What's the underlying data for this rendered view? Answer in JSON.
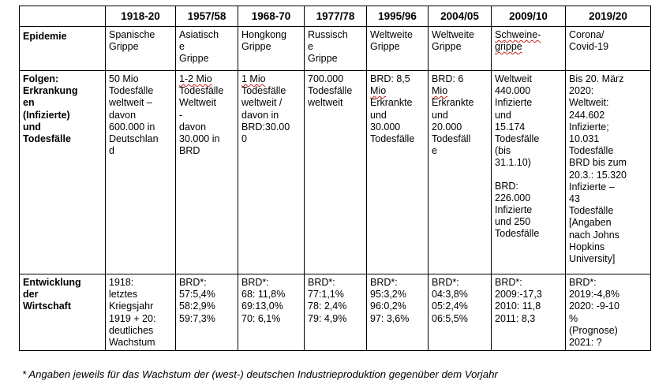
{
  "header": {
    "blank": "",
    "years": [
      "1918-20",
      "1957/58",
      "1968-70",
      "1977/78",
      "1995/96",
      "2004/05",
      "2009/10",
      "2019/20"
    ]
  },
  "rows": {
    "epidemie": {
      "label": "Epidemie",
      "cells": [
        [
          "Spanische",
          "Grippe"
        ],
        [
          "Asiatisch",
          "e",
          "Grippe"
        ],
        [
          "Hongkong",
          "Grippe"
        ],
        [
          "Russisch",
          "e",
          "Grippe"
        ],
        [
          "Weltweite",
          "Grippe"
        ],
        [
          "Weltweite",
          "Grippe"
        ],
        [
          "Schweine-",
          "grippe"
        ],
        [
          "Corona/",
          "Covid-19"
        ]
      ]
    },
    "folgen": {
      "label": [
        "Folgen:",
        "Erkrankung",
        "en",
        "(Infizierte)",
        "und",
        "Todesfälle"
      ],
      "cells": [
        [
          "50 Mio",
          "Todesfälle",
          "weltweit –",
          "davon",
          "600.000 in",
          "Deutschlan",
          "d"
        ],
        [
          "1-2 Mio",
          "Todesfälle",
          "Weltweit",
          "-",
          "davon",
          "30.000 in",
          "BRD"
        ],
        [
          "1 Mio",
          "Todesfälle",
          "weltweit /",
          "davon in",
          "BRD:30.00",
          "0"
        ],
        [
          "700.000",
          "Todesfälle",
          "weltweit"
        ],
        [
          "BRD: 8,5",
          "Mio",
          "Erkrankte",
          "und",
          "30.000",
          "Todesfälle"
        ],
        [
          "BRD: 6",
          "Mio",
          "Erkrankte",
          "und",
          "20.000",
          "Todesfäll",
          "e"
        ],
        [
          "Weltweit",
          "440.000",
          "Infizierte",
          "und",
          "15.174",
          "Todesfälle",
          "(bis",
          "31.1.10)",
          "",
          "BRD:",
          "226.000",
          "Infizierte",
          "und 250",
          "Todesfälle"
        ],
        [
          "Bis 20. März",
          "2020:",
          "Weltweit:",
          "244.602",
          "Infizierte;",
          "10.031",
          "Todesfälle",
          "BRD bis zum",
          "20.3.: 15.320",
          "Infizierte –",
          "43",
          "Todesfälle",
          "[Angaben",
          "nach Johns",
          "Hopkins",
          "University]"
        ]
      ]
    },
    "entwicklung": {
      "label": [
        "Entwicklung",
        "der",
        "Wirtschaft"
      ],
      "cells": [
        [
          "1918:",
          "letztes",
          "Kriegsjahr",
          "1919 + 20:",
          "deutliches",
          "Wachstum"
        ],
        [
          "BRD*:",
          "57:5,4%",
          "58:2,9%",
          "59:7,3%"
        ],
        [
          "BRD*:",
          "68: 11,8%",
          "69:13,0%",
          "70: 6,1%"
        ],
        [
          "BRD*:",
          "77:1,1%",
          "78: 2,4%",
          "79: 4,9%"
        ],
        [
          "BRD*:",
          "95:3,2%",
          "96:0,2%",
          "97: 3,6%"
        ],
        [
          "BRD*:",
          "04:3,8%",
          "05:2,4%",
          "06:5,5%"
        ],
        [
          "BRD*:",
          "2009:-17,3",
          "2010: 11,8",
          "2011: 8,3"
        ],
        [
          "BRD*:",
          "2019:-4,8%",
          "2020: -9-10",
          "%",
          "(Prognose)",
          "2021: ?"
        ]
      ]
    }
  },
  "footnote": "*  Angaben jeweils für das Wachstum der (west-) deutschen Industrieproduktion gegenüber dem Vorjahr"
}
